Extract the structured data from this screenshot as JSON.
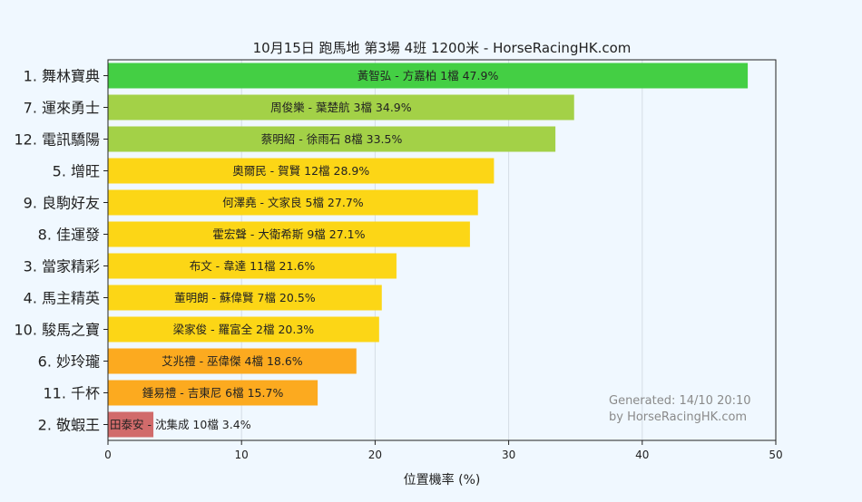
{
  "chart_data": {
    "type": "bar",
    "orientation": "horizontal",
    "title": "10月15日  跑馬地  第3場  4班  1200米 - HorseRacingHK.com",
    "xlabel": "位置機率 (%)",
    "ylabel": "",
    "xlim": [
      0,
      50
    ],
    "xticks": [
      0,
      10,
      20,
      30,
      40,
      50
    ],
    "grid": "vertical",
    "watermark": [
      "Generated: 14/10 20:10",
      "by HorseRacingHK.com"
    ],
    "bars": [
      {
        "horse": "1. 舞林寶典",
        "label": "黃智弘 - 方嘉柏 1檔  47.9%",
        "value": 47.9,
        "color": "#44cf44"
      },
      {
        "horse": "7. 運來勇士",
        "label": "周俊樂 - 葉楚航 3檔  34.9%",
        "value": 34.9,
        "color": "#a3d147"
      },
      {
        "horse": "12. 電訊驕陽",
        "label": "蔡明紹 - 徐雨石 8檔  33.5%",
        "value": 33.5,
        "color": "#a3d147"
      },
      {
        "horse": "5. 增旺",
        "label": "奧爾民 - 賀賢 12檔  28.9%",
        "value": 28.9,
        "color": "#fcd616"
      },
      {
        "horse": "9. 良駒好友",
        "label": "何澤堯 - 文家良 5檔  27.7%",
        "value": 27.7,
        "color": "#fcd616"
      },
      {
        "horse": "8. 佳運發",
        "label": "霍宏聲 - 大衛希斯 9檔  27.1%",
        "value": 27.1,
        "color": "#fcd616"
      },
      {
        "horse": "3. 當家精彩",
        "label": "布文 - 韋達 11檔  21.6%",
        "value": 21.6,
        "color": "#fcd616"
      },
      {
        "horse": "4. 馬主精英",
        "label": "董明朗 - 蘇偉賢 7檔  20.5%",
        "value": 20.5,
        "color": "#fcd616"
      },
      {
        "horse": "10. 駿馬之寶",
        "label": "梁家俊 - 羅富全 2檔  20.3%",
        "value": 20.3,
        "color": "#fcd616"
      },
      {
        "horse": "6. 妙玲瓏",
        "label": "艾兆禮 - 巫偉傑 4檔  18.6%",
        "value": 18.6,
        "color": "#fcaa1f"
      },
      {
        "horse": "11. 千杯",
        "label": "鍾易禮 - 吉東尼 6檔  15.7%",
        "value": 15.7,
        "color": "#fcaa1f"
      },
      {
        "horse": "2. 敬蝦王",
        "label": "田泰安 - 沈集成 10檔  3.4%",
        "value": 3.4,
        "color": "#d16b6b"
      }
    ]
  }
}
